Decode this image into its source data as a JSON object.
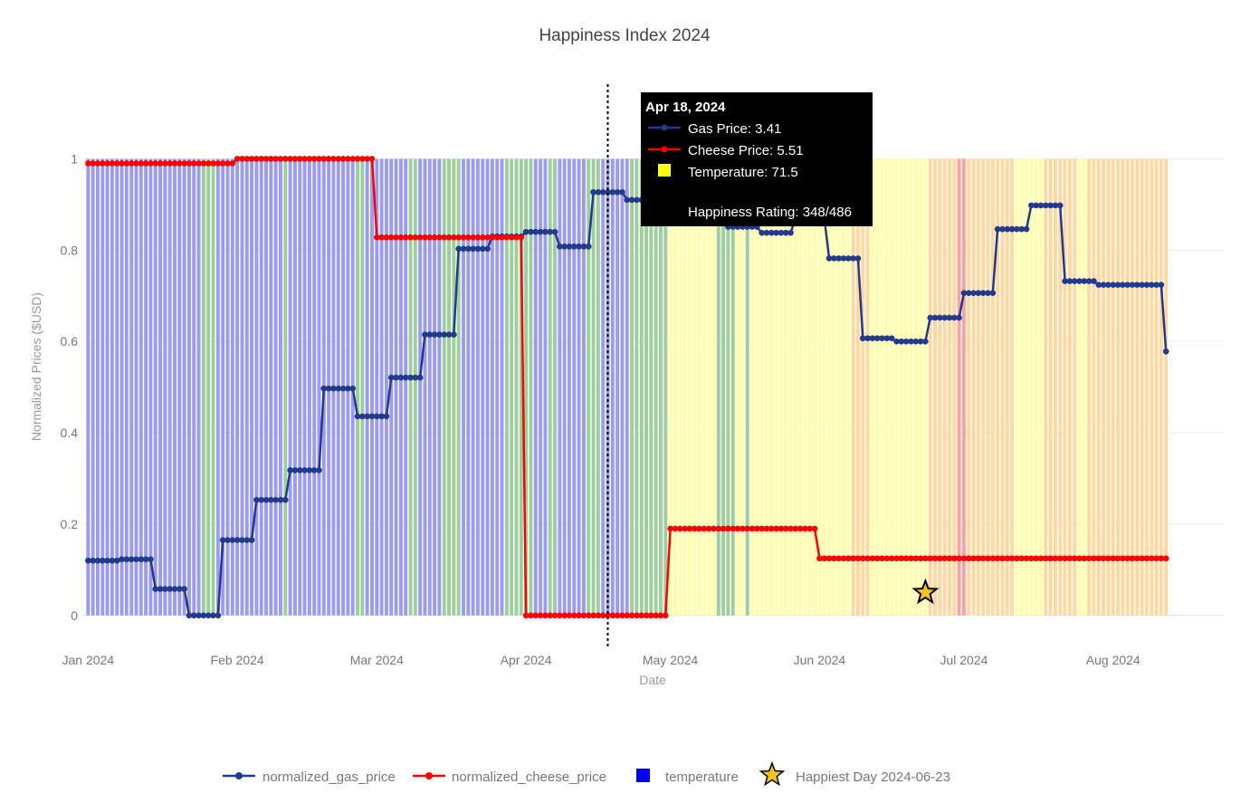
{
  "chart_data": {
    "type": "line",
    "title": "Happiness Index 2024",
    "xlabel": "Date",
    "ylabel": "Normalized Prices ($USD)",
    "x_range": [
      "2023-12-31",
      "2024-08-24"
    ],
    "ylim": [
      -0.05,
      1.1
    ],
    "y_ticks": [
      0,
      0.2,
      0.4,
      0.6,
      0.8,
      1
    ],
    "y_tick_labels": [
      "0",
      "0.2",
      "0.4",
      "0.6",
      "0.8",
      "1"
    ],
    "x_ticks": [
      "2024-01-01",
      "2024-02-01",
      "2024-03-01",
      "2024-04-01",
      "2024-05-01",
      "2024-06-01",
      "2024-07-01",
      "2024-08-01"
    ],
    "x_tick_labels": [
      "Jan 2024",
      "Feb 2024",
      "Mar 2024",
      "Apr 2024",
      "May 2024",
      "Jun 2024",
      "Jul 2024",
      "Aug 2024"
    ],
    "grid": true,
    "legend_position": "bottom",
    "series": [
      {
        "name": "normalized_gas_price",
        "color": "#223a8c",
        "segments": [
          {
            "start": "2024-01-01",
            "end": "2024-01-07",
            "value": 0.12
          },
          {
            "start": "2024-01-08",
            "end": "2024-01-14",
            "value": 0.123
          },
          {
            "start": "2024-01-15",
            "end": "2024-01-21",
            "value": 0.058
          },
          {
            "start": "2024-01-22",
            "end": "2024-01-28",
            "value": 0.0
          },
          {
            "start": "2024-01-29",
            "end": "2024-02-04",
            "value": 0.165
          },
          {
            "start": "2024-02-05",
            "end": "2024-02-11",
            "value": 0.253
          },
          {
            "start": "2024-02-12",
            "end": "2024-02-18",
            "value": 0.318
          },
          {
            "start": "2024-02-19",
            "end": "2024-02-25",
            "value": 0.497
          },
          {
            "start": "2024-02-26",
            "end": "2024-03-03",
            "value": 0.436
          },
          {
            "start": "2024-03-04",
            "end": "2024-03-10",
            "value": 0.521
          },
          {
            "start": "2024-03-11",
            "end": "2024-03-17",
            "value": 0.615
          },
          {
            "start": "2024-03-18",
            "end": "2024-03-24",
            "value": 0.803
          },
          {
            "start": "2024-03-25",
            "end": "2024-03-31",
            "value": 0.83
          },
          {
            "start": "2024-04-01",
            "end": "2024-04-07",
            "value": 0.84
          },
          {
            "start": "2024-04-08",
            "end": "2024-04-14",
            "value": 0.808
          },
          {
            "start": "2024-04-15",
            "end": "2024-04-21",
            "value": 0.927
          },
          {
            "start": "2024-04-22",
            "end": "2024-04-28",
            "value": 0.91
          },
          {
            "start": "2024-04-29",
            "end": "2024-05-05",
            "value": 0.89
          },
          {
            "start": "2024-05-06",
            "end": "2024-05-12",
            "value": 0.87
          },
          {
            "start": "2024-05-13",
            "end": "2024-05-19",
            "value": 0.851
          },
          {
            "start": "2024-05-20",
            "end": "2024-05-26",
            "value": 0.838
          },
          {
            "start": "2024-05-27",
            "end": "2024-06-02",
            "value": 0.87
          },
          {
            "start": "2024-06-03",
            "end": "2024-06-09",
            "value": 0.782
          },
          {
            "start": "2024-06-10",
            "end": "2024-06-16",
            "value": 0.607
          },
          {
            "start": "2024-06-17",
            "end": "2024-06-23",
            "value": 0.6
          },
          {
            "start": "2024-06-24",
            "end": "2024-06-30",
            "value": 0.652
          },
          {
            "start": "2024-07-01",
            "end": "2024-07-07",
            "value": 0.706
          },
          {
            "start": "2024-07-08",
            "end": "2024-07-14",
            "value": 0.846
          },
          {
            "start": "2024-07-15",
            "end": "2024-07-21",
            "value": 0.898
          },
          {
            "start": "2024-07-22",
            "end": "2024-07-28",
            "value": 0.732
          },
          {
            "start": "2024-07-29",
            "end": "2024-08-11",
            "value": 0.724
          },
          {
            "start": "2024-08-12",
            "end": "2024-08-12",
            "value": 0.578
          }
        ]
      },
      {
        "name": "normalized_cheese_price",
        "color": "#ff0000",
        "segments": [
          {
            "start": "2024-01-01",
            "end": "2024-01-31",
            "value": 0.99
          },
          {
            "start": "2024-02-01",
            "end": "2024-02-29",
            "value": 1.0
          },
          {
            "start": "2024-03-01",
            "end": "2024-03-31",
            "value": 0.828
          },
          {
            "start": "2024-04-01",
            "end": "2024-04-30",
            "value": 0.0
          },
          {
            "start": "2024-05-01",
            "end": "2024-05-31",
            "value": 0.19
          },
          {
            "start": "2024-06-01",
            "end": "2024-08-12",
            "value": 0.125
          }
        ]
      }
    ],
    "temperature_bands": {
      "name": "temperature",
      "legend_color": "#0000ff",
      "start": "2024-01-01",
      "end": "2024-08-12",
      "height": 1,
      "periods": [
        {
          "start": "2024-01-01",
          "end": "2024-01-24",
          "color": "#9b9bf2"
        },
        {
          "start": "2024-01-25",
          "end": "2024-01-27",
          "color": "#9ccf9c"
        },
        {
          "start": "2024-01-28",
          "end": "2024-02-10",
          "color": "#9b9bf2"
        },
        {
          "start": "2024-02-11",
          "end": "2024-02-11",
          "color": "#9ccf9c"
        },
        {
          "start": "2024-02-12",
          "end": "2024-02-25",
          "color": "#9b9bf2"
        },
        {
          "start": "2024-02-26",
          "end": "2024-02-27",
          "color": "#9ccf9c"
        },
        {
          "start": "2024-02-28",
          "end": "2024-03-07",
          "color": "#9b9bf2"
        },
        {
          "start": "2024-03-08",
          "end": "2024-03-09",
          "color": "#9ccf9c"
        },
        {
          "start": "2024-03-10",
          "end": "2024-03-14",
          "color": "#9b9bf2"
        },
        {
          "start": "2024-03-15",
          "end": "2024-03-18",
          "color": "#9ccf9c"
        },
        {
          "start": "2024-03-19",
          "end": "2024-03-27",
          "color": "#9b9bf2"
        },
        {
          "start": "2024-03-28",
          "end": "2024-04-02",
          "color": "#9ccf9c"
        },
        {
          "start": "2024-04-03",
          "end": "2024-04-05",
          "color": "#9b9bf2"
        },
        {
          "start": "2024-04-06",
          "end": "2024-04-07",
          "color": "#9ccf9c"
        },
        {
          "start": "2024-04-08",
          "end": "2024-04-13",
          "color": "#9b9bf2"
        },
        {
          "start": "2024-04-14",
          "end": "2024-04-16",
          "color": "#9ccf9c"
        },
        {
          "start": "2024-04-17",
          "end": "2024-04-22",
          "color": "#9b9bf2"
        },
        {
          "start": "2024-04-23",
          "end": "2024-04-30",
          "color": "#9ccf9c"
        },
        {
          "start": "2024-05-01",
          "end": "2024-05-10",
          "color": "#ffffa6"
        },
        {
          "start": "2024-05-11",
          "end": "2024-05-14",
          "color": "#9ccf9c"
        },
        {
          "start": "2024-05-15",
          "end": "2024-05-16",
          "color": "#ffffa6"
        },
        {
          "start": "2024-05-17",
          "end": "2024-05-17",
          "color": "#9ccf9c"
        },
        {
          "start": "2024-06-01",
          "end": "2024-06-07",
          "color": "#ffffa6"
        },
        {
          "start": "2024-06-08",
          "end": "2024-06-11",
          "color": "#ffd8a0"
        },
        {
          "start": "2024-06-12",
          "end": "2024-06-23",
          "color": "#ffffa6"
        },
        {
          "start": "2024-06-24",
          "end": "2024-06-29",
          "color": "#ffd8a0"
        },
        {
          "start": "2024-06-30",
          "end": "2024-07-01",
          "color": "#ffa0a0"
        },
        {
          "start": "2024-07-02",
          "end": "2024-07-11",
          "color": "#ffd8a0"
        },
        {
          "start": "2024-07-12",
          "end": "2024-07-17",
          "color": "#ffffa6"
        },
        {
          "start": "2024-07-18",
          "end": "2024-07-24",
          "color": "#ffd8a0"
        },
        {
          "start": "2024-07-25",
          "end": "2024-07-26",
          "color": "#ffffa6"
        },
        {
          "start": "2024-07-27",
          "end": "2024-08-12",
          "color": "#ffd8a0"
        }
      ],
      "default_color": "#ffffa6"
    },
    "happiest_day": {
      "name": "Happiest Day 2024-06-23",
      "x": "2024-06-23",
      "y": 0.05,
      "color": "#f5c518"
    },
    "hover_line_x": "2024-04-18",
    "tooltip": {
      "date": "Apr 18, 2024",
      "gas": "Gas Price: 3.41",
      "cheese": "Cheese Price: 5.51",
      "temperature": "Temperature: 71.5",
      "temperature_color": "#ffff00",
      "rating": "Happiness Rating: 348/486"
    }
  }
}
